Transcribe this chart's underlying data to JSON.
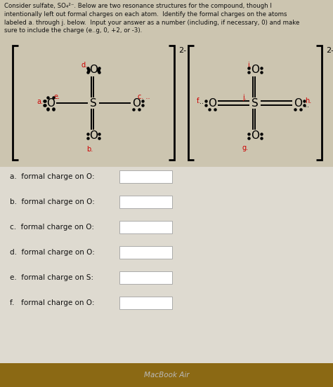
{
  "bg_color": "#ccc5b0",
  "white_area_color": "#e8e4d8",
  "text_color": "#111111",
  "red_color": "#cc0000",
  "title_text": "Consider sulfate, SO₄²⁻. Below are two resonance structures for the compound, though I\nintentionally left out formal charges on each atom.  Identify the formal charges on the atoms\nlabeled a. through j. below.  Input your answer as a number (including, if necessary, 0) and make\nsure to include the charge (e..g, 0, +2, or -3).",
  "footer_text": "MacBook Air",
  "questions": [
    "a.  formal charge on O:",
    "b.  formal charge on O:",
    "c.  formal charge on O:",
    "d.  formal charge on O:",
    "e.  formal charge on S:",
    "f.   formal charge on O:"
  ],
  "charge_label": "2-",
  "struct_bg": "#d4cfc0"
}
